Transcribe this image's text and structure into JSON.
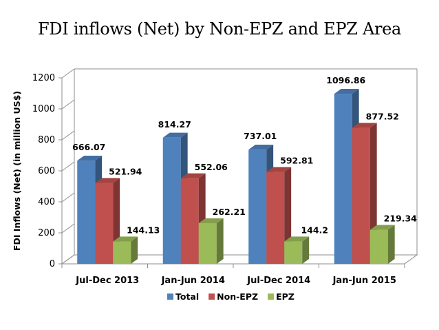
{
  "chart_data": {
    "type": "bar",
    "title": "FDI inflows (Net) by Non-EPZ and EPZ Area",
    "xlabel": "",
    "ylabel": "FDI Inflows (Net) (in million US$)",
    "ylim": [
      0,
      1200
    ],
    "yticks": [
      "0",
      "200",
      "400",
      "600",
      "800",
      "1000",
      "1200"
    ],
    "categories": [
      "Jul-Dec 2013",
      "Jan-Jun 2014",
      "Jul-Dec 2014",
      "Jan-Jun 2015"
    ],
    "series": [
      {
        "name": "Total",
        "color": "#4F81BD",
        "values": [
          666.07,
          814.27,
          737.01,
          1096.86
        ],
        "labels": [
          "666.07",
          "814.27",
          "737.01",
          "1096.86"
        ]
      },
      {
        "name": "Non-EPZ",
        "color": "#C0504D",
        "values": [
          521.94,
          552.06,
          592.81,
          877.52
        ],
        "labels": [
          "521.94",
          "552.06",
          "592.81",
          "877.52"
        ]
      },
      {
        "name": "EPZ",
        "color": "#9BBB59",
        "values": [
          144.13,
          262.21,
          144.2,
          219.34
        ],
        "labels": [
          "144.13",
          "262.21",
          "144.2",
          "219.34"
        ]
      }
    ],
    "legend_position": "bottom",
    "grid": false,
    "style": "3d-clustered-column"
  }
}
